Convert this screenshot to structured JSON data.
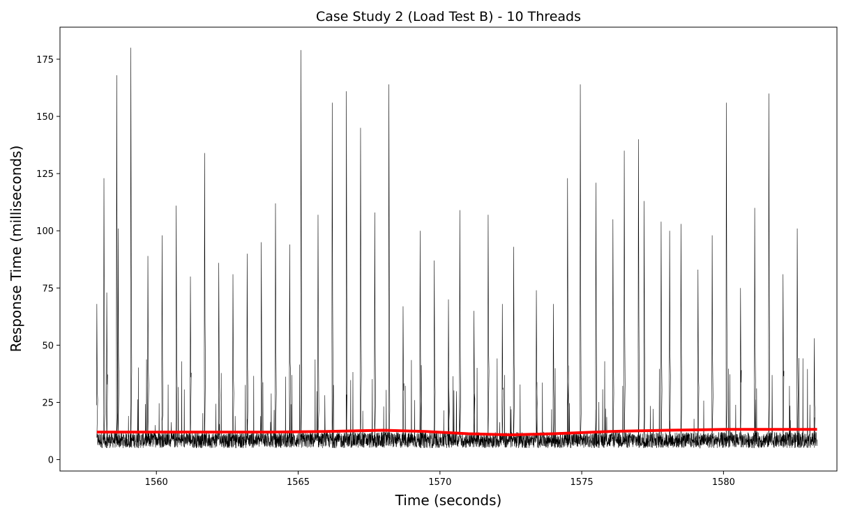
{
  "chart_data": {
    "type": "line",
    "title": "Case Study 2 (Load Test B) - 10 Threads",
    "xlabel": "Time (seconds)",
    "ylabel": "Response Time (milliseconds)",
    "xlim": [
      1556.6,
      1584.0
    ],
    "ylim": [
      -5,
      189
    ],
    "x_ticks": [
      1560,
      1565,
      1570,
      1575,
      1580
    ],
    "y_ticks": [
      0,
      25,
      50,
      75,
      100,
      125,
      150,
      175
    ],
    "grid": false,
    "colors": {
      "raw": "#000000",
      "trend": "#ff0000"
    },
    "series": [
      {
        "role": "raw response times",
        "x_start": 1557.9,
        "x_end": 1583.3,
        "baseline_min": 5,
        "baseline_max": 12,
        "peaks": [
          [
            1557.9,
            68
          ],
          [
            1558.15,
            123
          ],
          [
            1558.25,
            73
          ],
          [
            1558.6,
            168
          ],
          [
            1558.65,
            101
          ],
          [
            1559.1,
            180
          ],
          [
            1559.7,
            89
          ],
          [
            1560.2,
            98
          ],
          [
            1560.7,
            111
          ],
          [
            1561.2,
            80
          ],
          [
            1561.7,
            134
          ],
          [
            1562.2,
            86
          ],
          [
            1562.7,
            81
          ],
          [
            1563.2,
            90
          ],
          [
            1563.7,
            95
          ],
          [
            1564.2,
            112
          ],
          [
            1564.7,
            94
          ],
          [
            1565.1,
            179
          ],
          [
            1565.7,
            107
          ],
          [
            1566.2,
            156
          ],
          [
            1566.7,
            161
          ],
          [
            1567.2,
            145
          ],
          [
            1567.7,
            108
          ],
          [
            1568.2,
            164
          ],
          [
            1568.7,
            67
          ],
          [
            1569.3,
            100
          ],
          [
            1569.8,
            87
          ],
          [
            1570.3,
            70
          ],
          [
            1570.7,
            109
          ],
          [
            1571.2,
            65
          ],
          [
            1571.7,
            107
          ],
          [
            1572.2,
            68
          ],
          [
            1572.6,
            93
          ],
          [
            1573.4,
            74
          ],
          [
            1574.0,
            68
          ],
          [
            1574.5,
            123
          ],
          [
            1574.95,
            164
          ],
          [
            1575.5,
            121
          ],
          [
            1576.1,
            105
          ],
          [
            1576.5,
            135
          ],
          [
            1577.0,
            140
          ],
          [
            1577.2,
            113
          ],
          [
            1577.8,
            104
          ],
          [
            1578.1,
            100
          ],
          [
            1578.5,
            103
          ],
          [
            1579.1,
            83
          ],
          [
            1579.6,
            98
          ],
          [
            1580.1,
            156
          ],
          [
            1580.6,
            75
          ],
          [
            1581.1,
            110
          ],
          [
            1581.6,
            160
          ],
          [
            1582.1,
            81
          ],
          [
            1582.6,
            101
          ],
          [
            1583.2,
            53
          ]
        ]
      },
      {
        "role": "trend",
        "x": [
          1557.9,
          1560,
          1562,
          1564,
          1566,
          1568,
          1569.5,
          1571,
          1572.5,
          1574,
          1576,
          1578,
          1580,
          1583.3
        ],
        "y": [
          12,
          12,
          12,
          12,
          12.3,
          12.8,
          12.3,
          11.3,
          10.8,
          11.3,
          12.3,
          12.8,
          13.2,
          13.2
        ]
      }
    ]
  }
}
